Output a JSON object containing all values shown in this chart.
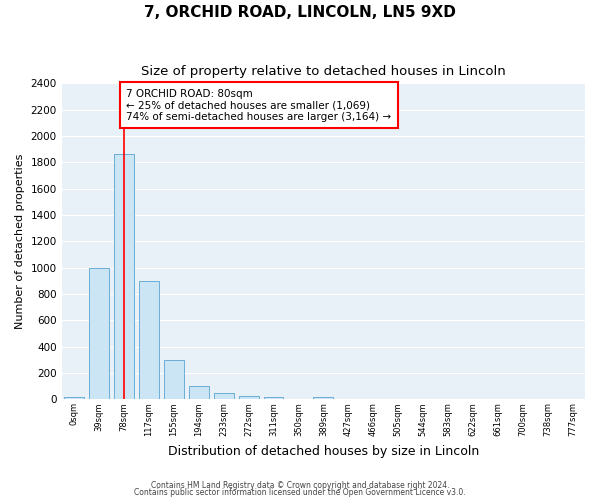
{
  "title": "7, ORCHID ROAD, LINCOLN, LN5 9XD",
  "subtitle": "Size of property relative to detached houses in Lincoln",
  "xlabel": "Distribution of detached houses by size in Lincoln",
  "ylabel": "Number of detached properties",
  "footnote1": "Contains HM Land Registry data © Crown copyright and database right 2024.",
  "footnote2": "Contains public sector information licensed under the Open Government Licence v3.0.",
  "bin_labels": [
    "0sqm",
    "39sqm",
    "78sqm",
    "117sqm",
    "155sqm",
    "194sqm",
    "233sqm",
    "272sqm",
    "311sqm",
    "350sqm",
    "389sqm",
    "427sqm",
    "466sqm",
    "505sqm",
    "544sqm",
    "583sqm",
    "622sqm",
    "661sqm",
    "700sqm",
    "738sqm",
    "777sqm"
  ],
  "bar_heights": [
    20,
    1000,
    1860,
    900,
    300,
    100,
    45,
    25,
    20,
    0,
    15,
    0,
    0,
    0,
    0,
    0,
    0,
    0,
    0,
    0,
    0
  ],
  "bar_color": "#cce5f5",
  "bar_edge_color": "#6aaed6",
  "red_line_x": 2,
  "annotation_title": "7 ORCHID ROAD: 80sqm",
  "annotation_line1": "← 25% of detached houses are smaller (1,069)",
  "annotation_line2": "74% of semi-detached houses are larger (3,164) →",
  "ylim": [
    0,
    2400
  ],
  "yticks": [
    0,
    200,
    400,
    600,
    800,
    1000,
    1200,
    1400,
    1600,
    1800,
    2000,
    2200,
    2400
  ],
  "bg_color": "#e8f0f8",
  "grid_color": "#ffffff",
  "fig_bg_color": "#ffffff",
  "title_fontsize": 11,
  "subtitle_fontsize": 9.5,
  "xlabel_fontsize": 9,
  "ylabel_fontsize": 8
}
